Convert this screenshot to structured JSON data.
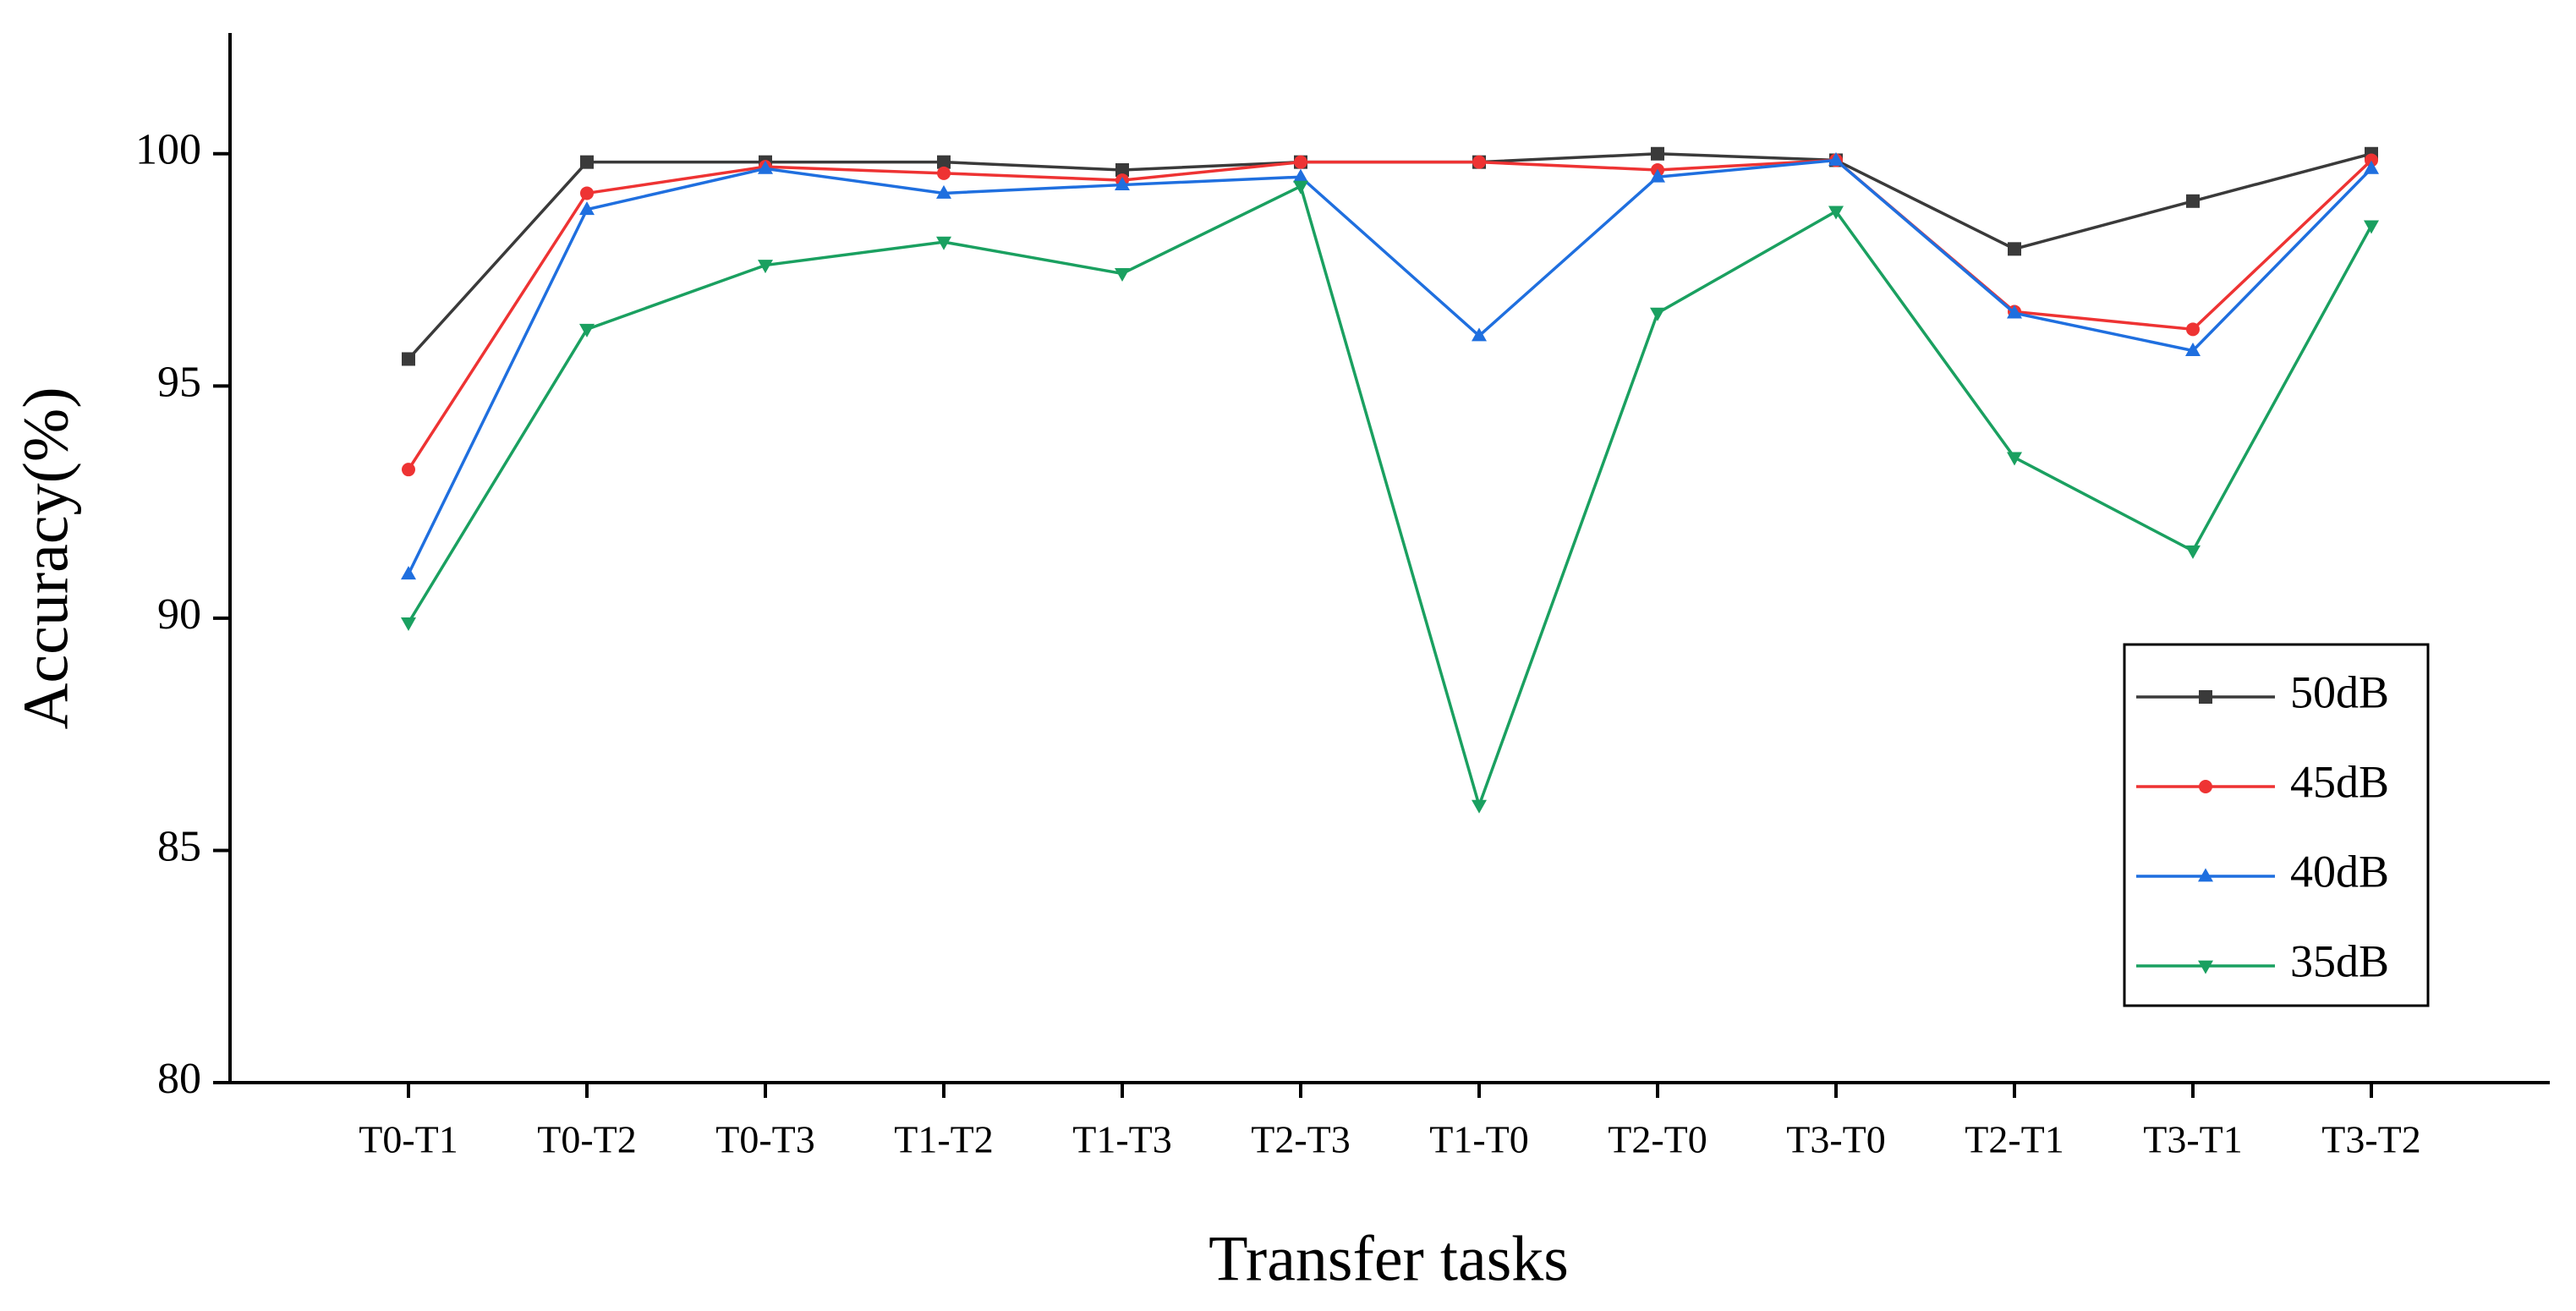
{
  "chart_data": {
    "type": "line",
    "x_label": "Transfer tasks",
    "y_label": "Accuracy(%)",
    "categories": [
      "T0-T1",
      "T0-T2",
      "T0-T3",
      "T1-T2",
      "T1-T3",
      "T2-T3",
      "T1-T0",
      "T2-T0",
      "T3-T0",
      "T2-T1",
      "T3-T1",
      "T3-T2"
    ],
    "series": [
      {
        "name": "50dB",
        "color": "#3a3a3a",
        "marker": "square",
        "values": [
          95.58,
          99.82,
          99.82,
          99.82,
          99.65,
          99.82,
          99.82,
          100,
          99.86,
          97.95,
          98.98,
          100
        ]
      },
      {
        "name": "45dB",
        "color": "#ee3333",
        "marker": "circle",
        "values": [
          93.2,
          99.15,
          99.72,
          99.58,
          99.43,
          99.82,
          99.82,
          99.65,
          99.86,
          96.6,
          96.22,
          99.86
        ]
      },
      {
        "name": "40dB",
        "color": "#1f6fdf",
        "marker": "triangle-up",
        "values": [
          90.95,
          98.8,
          99.68,
          99.15,
          99.33,
          99.5,
          96.08,
          99.5,
          99.86,
          96.57,
          95.76,
          99.68
        ]
      },
      {
        "name": "35dB",
        "color": "#1aa060",
        "marker": "triangle-down",
        "values": [
          89.9,
          96.22,
          97.6,
          98.1,
          97.42,
          99.3,
          85.97,
          96.57,
          98.76,
          93.46,
          91.45,
          98.45
        ]
      }
    ],
    "ylim": [
      80,
      102.6
    ],
    "yticks": [
      80,
      85,
      90,
      95,
      100
    ],
    "grid": false,
    "legend": "lower right"
  }
}
